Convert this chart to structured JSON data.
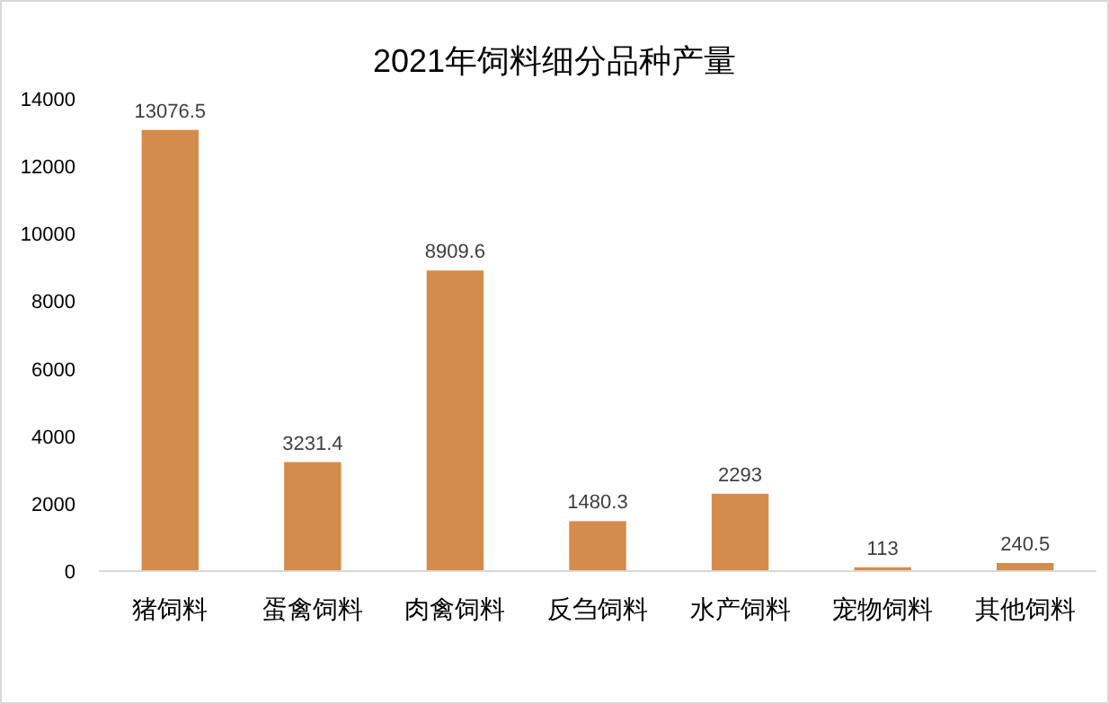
{
  "chart_data": {
    "type": "bar",
    "title": "2021年饲料细分品种产量",
    "categories": [
      "猪饲料",
      "蛋禽饲料",
      "肉禽饲料",
      "反刍饲料",
      "水产饲料",
      "宠物饲料",
      "其他饲料"
    ],
    "values": [
      13076.5,
      3231.4,
      8909.6,
      1480.3,
      2293,
      113,
      240.5
    ],
    "color": "#d48c4c",
    "ylim": [
      0,
      14000
    ],
    "yticks": [
      0,
      2000,
      4000,
      6000,
      8000,
      10000,
      12000,
      14000
    ],
    "data_labels": true
  }
}
